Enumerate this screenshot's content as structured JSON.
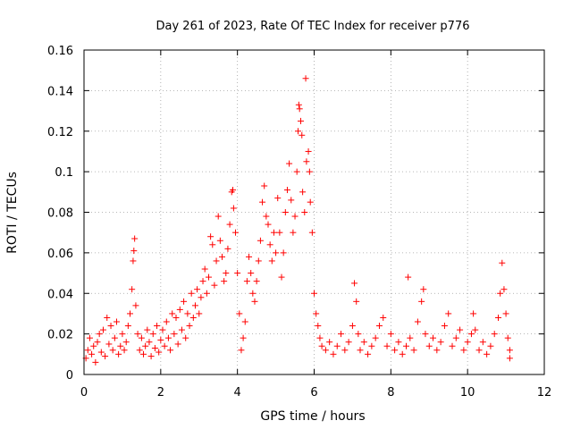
{
  "chart_data": {
    "type": "scatter",
    "title": "Day 261 of 2023, Rate Of TEC Index for receiver p776",
    "xlabel": "GPS time / hours",
    "ylabel": "ROTI / TECUs",
    "xlim": [
      0,
      12
    ],
    "ylim": [
      0,
      0.16
    ],
    "xticks": [
      0,
      2,
      4,
      6,
      8,
      10,
      12
    ],
    "xtick_labels": [
      "0",
      "2",
      "4",
      "6",
      "8",
      "10",
      "12"
    ],
    "yticks": [
      0,
      0.02,
      0.04,
      0.06,
      0.08,
      0.1,
      0.12,
      0.14,
      0.16
    ],
    "ytick_labels": [
      "0",
      "0.02",
      "0.04",
      "0.06",
      "0.08",
      "0.1",
      "0.12",
      "0.14",
      "0.16"
    ],
    "grid": true,
    "marker": "+",
    "color": "#ff0000",
    "series": [
      {
        "name": "ROTI",
        "points": [
          [
            0.05,
            0.008
          ],
          [
            0.1,
            0.012
          ],
          [
            0.15,
            0.018
          ],
          [
            0.2,
            0.01
          ],
          [
            0.25,
            0.014
          ],
          [
            0.3,
            0.006
          ],
          [
            0.35,
            0.016
          ],
          [
            0.4,
            0.02
          ],
          [
            0.45,
            0.011
          ],
          [
            0.5,
            0.022
          ],
          [
            0.55,
            0.009
          ],
          [
            0.6,
            0.028
          ],
          [
            0.65,
            0.015
          ],
          [
            0.7,
            0.024
          ],
          [
            0.75,
            0.012
          ],
          [
            0.8,
            0.018
          ],
          [
            0.85,
            0.026
          ],
          [
            0.9,
            0.01
          ],
          [
            0.95,
            0.014
          ],
          [
            1.0,
            0.02
          ],
          [
            1.05,
            0.012
          ],
          [
            1.1,
            0.016
          ],
          [
            1.15,
            0.024
          ],
          [
            1.2,
            0.03
          ],
          [
            1.25,
            0.042
          ],
          [
            1.28,
            0.056
          ],
          [
            1.3,
            0.061
          ],
          [
            1.32,
            0.067
          ],
          [
            1.35,
            0.034
          ],
          [
            1.4,
            0.02
          ],
          [
            1.45,
            0.012
          ],
          [
            1.5,
            0.018
          ],
          [
            1.55,
            0.01
          ],
          [
            1.6,
            0.014
          ],
          [
            1.65,
            0.022
          ],
          [
            1.7,
            0.016
          ],
          [
            1.75,
            0.009
          ],
          [
            1.8,
            0.02
          ],
          [
            1.85,
            0.013
          ],
          [
            1.9,
            0.024
          ],
          [
            1.95,
            0.011
          ],
          [
            2.0,
            0.017
          ],
          [
            2.05,
            0.022
          ],
          [
            2.1,
            0.014
          ],
          [
            2.15,
            0.026
          ],
          [
            2.2,
            0.018
          ],
          [
            2.25,
            0.012
          ],
          [
            2.3,
            0.03
          ],
          [
            2.35,
            0.02
          ],
          [
            2.4,
            0.028
          ],
          [
            2.45,
            0.015
          ],
          [
            2.5,
            0.032
          ],
          [
            2.55,
            0.022
          ],
          [
            2.6,
            0.036
          ],
          [
            2.65,
            0.018
          ],
          [
            2.7,
            0.03
          ],
          [
            2.75,
            0.024
          ],
          [
            2.8,
            0.04
          ],
          [
            2.85,
            0.028
          ],
          [
            2.9,
            0.034
          ],
          [
            2.95,
            0.042
          ],
          [
            3.0,
            0.03
          ],
          [
            3.05,
            0.038
          ],
          [
            3.1,
            0.046
          ],
          [
            3.15,
            0.052
          ],
          [
            3.2,
            0.04
          ],
          [
            3.25,
            0.048
          ],
          [
            3.3,
            0.068
          ],
          [
            3.35,
            0.064
          ],
          [
            3.4,
            0.044
          ],
          [
            3.45,
            0.056
          ],
          [
            3.5,
            0.078
          ],
          [
            3.55,
            0.066
          ],
          [
            3.6,
            0.058
          ],
          [
            3.65,
            0.046
          ],
          [
            3.7,
            0.05
          ],
          [
            3.75,
            0.062
          ],
          [
            3.8,
            0.074
          ],
          [
            3.85,
            0.09
          ],
          [
            3.88,
            0.091
          ],
          [
            3.9,
            0.082
          ],
          [
            3.95,
            0.07
          ],
          [
            4.0,
            0.05
          ],
          [
            4.05,
            0.03
          ],
          [
            4.1,
            0.012
          ],
          [
            4.15,
            0.018
          ],
          [
            4.2,
            0.026
          ],
          [
            4.25,
            0.046
          ],
          [
            4.3,
            0.058
          ],
          [
            4.35,
            0.05
          ],
          [
            4.4,
            0.04
          ],
          [
            4.45,
            0.036
          ],
          [
            4.5,
            0.046
          ],
          [
            4.55,
            0.056
          ],
          [
            4.6,
            0.066
          ],
          [
            4.65,
            0.085
          ],
          [
            4.7,
            0.093
          ],
          [
            4.75,
            0.078
          ],
          [
            4.8,
            0.074
          ],
          [
            4.85,
            0.064
          ],
          [
            4.9,
            0.056
          ],
          [
            4.95,
            0.07
          ],
          [
            5.0,
            0.06
          ],
          [
            5.05,
            0.087
          ],
          [
            5.1,
            0.07
          ],
          [
            5.15,
            0.048
          ],
          [
            5.2,
            0.06
          ],
          [
            5.25,
            0.08
          ],
          [
            5.3,
            0.091
          ],
          [
            5.35,
            0.104
          ],
          [
            5.4,
            0.086
          ],
          [
            5.45,
            0.07
          ],
          [
            5.5,
            0.078
          ],
          [
            5.55,
            0.1
          ],
          [
            5.58,
            0.12
          ],
          [
            5.6,
            0.133
          ],
          [
            5.62,
            0.131
          ],
          [
            5.65,
            0.125
          ],
          [
            5.68,
            0.118
          ],
          [
            5.7,
            0.09
          ],
          [
            5.75,
            0.08
          ],
          [
            5.78,
            0.146
          ],
          [
            5.8,
            0.105
          ],
          [
            5.85,
            0.11
          ],
          [
            5.88,
            0.1
          ],
          [
            5.9,
            0.085
          ],
          [
            5.95,
            0.07
          ],
          [
            6.0,
            0.04
          ],
          [
            6.05,
            0.03
          ],
          [
            6.1,
            0.024
          ],
          [
            6.15,
            0.018
          ],
          [
            6.2,
            0.014
          ],
          [
            6.3,
            0.012
          ],
          [
            6.4,
            0.016
          ],
          [
            6.5,
            0.01
          ],
          [
            6.6,
            0.014
          ],
          [
            6.7,
            0.02
          ],
          [
            6.8,
            0.012
          ],
          [
            6.9,
            0.016
          ],
          [
            7.0,
            0.024
          ],
          [
            7.05,
            0.045
          ],
          [
            7.1,
            0.036
          ],
          [
            7.15,
            0.02
          ],
          [
            7.2,
            0.012
          ],
          [
            7.3,
            0.016
          ],
          [
            7.4,
            0.01
          ],
          [
            7.5,
            0.014
          ],
          [
            7.6,
            0.018
          ],
          [
            7.7,
            0.024
          ],
          [
            7.8,
            0.028
          ],
          [
            7.9,
            0.014
          ],
          [
            8.0,
            0.02
          ],
          [
            8.1,
            0.012
          ],
          [
            8.2,
            0.016
          ],
          [
            8.3,
            0.01
          ],
          [
            8.4,
            0.014
          ],
          [
            8.45,
            0.048
          ],
          [
            8.5,
            0.018
          ],
          [
            8.6,
            0.012
          ],
          [
            8.7,
            0.026
          ],
          [
            8.8,
            0.036
          ],
          [
            8.85,
            0.042
          ],
          [
            8.9,
            0.02
          ],
          [
            9.0,
            0.014
          ],
          [
            9.1,
            0.018
          ],
          [
            9.2,
            0.012
          ],
          [
            9.3,
            0.016
          ],
          [
            9.4,
            0.024
          ],
          [
            9.5,
            0.03
          ],
          [
            9.6,
            0.014
          ],
          [
            9.7,
            0.018
          ],
          [
            9.8,
            0.022
          ],
          [
            9.9,
            0.012
          ],
          [
            10.0,
            0.016
          ],
          [
            10.1,
            0.02
          ],
          [
            10.15,
            0.03
          ],
          [
            10.2,
            0.022
          ],
          [
            10.3,
            0.012
          ],
          [
            10.4,
            0.016
          ],
          [
            10.5,
            0.01
          ],
          [
            10.6,
            0.014
          ],
          [
            10.7,
            0.02
          ],
          [
            10.8,
            0.028
          ],
          [
            10.85,
            0.04
          ],
          [
            10.9,
            0.055
          ],
          [
            10.95,
            0.042
          ],
          [
            11.0,
            0.03
          ],
          [
            11.05,
            0.018
          ],
          [
            11.1,
            0.012
          ],
          [
            11.1,
            0.008
          ]
        ]
      }
    ]
  }
}
